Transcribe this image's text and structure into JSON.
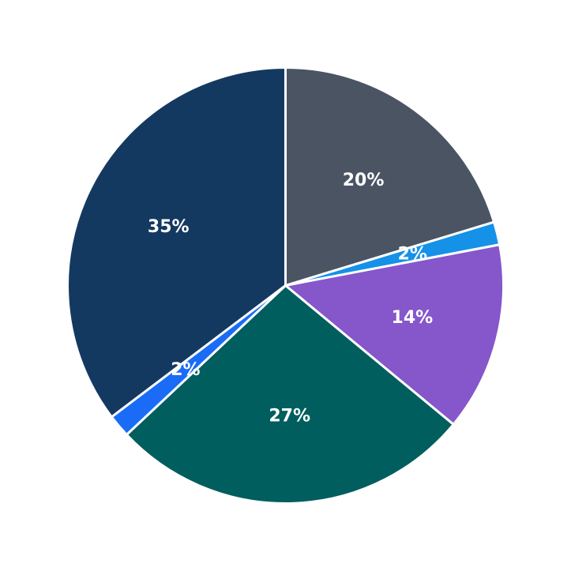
{
  "chart_data": {
    "type": "pie",
    "start_angle_deg": 90,
    "direction": "clockwise",
    "legend": "none",
    "slices": [
      {
        "value": 20.3,
        "label": "20%",
        "color": "#4a5463"
      },
      {
        "value": 1.7,
        "label": "2%",
        "color": "#1591e8"
      },
      {
        "value": 14.0,
        "label": "14%",
        "color": "#8656cb"
      },
      {
        "value": 27.0,
        "label": "27%",
        "color": "#005e5e"
      },
      {
        "value": 1.7,
        "label": "2%",
        "color": "#1a6cf6"
      },
      {
        "value": 35.3,
        "label": "35%",
        "color": "#143961"
      }
    ]
  }
}
